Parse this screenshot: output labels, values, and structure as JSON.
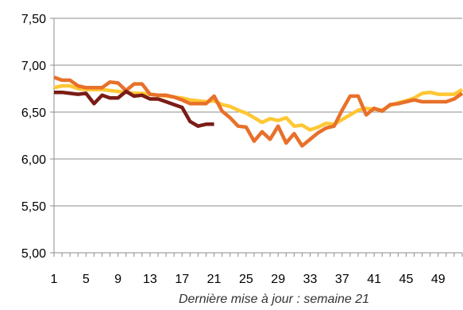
{
  "chart_data": {
    "type": "line",
    "title": "",
    "xlabel": "",
    "ylabel": "",
    "note": "Dernière mise à jour : semaine 21",
    "x_tick_labels": [
      "1",
      "5",
      "9",
      "13",
      "17",
      "21",
      "25",
      "29",
      "33",
      "37",
      "41",
      "45",
      "49"
    ],
    "y_tick_labels": [
      "5,00",
      "5,50",
      "6,00",
      "6,50",
      "7,00",
      "7,50"
    ],
    "ylim": [
      5.0,
      7.5
    ],
    "xlim": [
      1,
      52
    ],
    "grid": "horizontal",
    "legend": "none",
    "series": [
      {
        "color": "#FFC734",
        "x": [
          1,
          2,
          3,
          4,
          5,
          6,
          7,
          8,
          9,
          10,
          11,
          12,
          13,
          14,
          15,
          16,
          17,
          18,
          19,
          20,
          21,
          22,
          23,
          24,
          25,
          26,
          27,
          28,
          29,
          30,
          31,
          32,
          33,
          34,
          35,
          36,
          37,
          38,
          39,
          40,
          41,
          42,
          43,
          44,
          45,
          46,
          47,
          48,
          49,
          50,
          51,
          52
        ],
        "values": [
          6.76,
          6.78,
          6.78,
          6.75,
          6.74,
          6.74,
          6.74,
          6.73,
          6.72,
          6.71,
          6.7,
          6.7,
          6.69,
          6.68,
          6.67,
          6.66,
          6.65,
          6.63,
          6.62,
          6.61,
          6.62,
          6.58,
          6.56,
          6.52,
          6.49,
          6.44,
          6.39,
          6.43,
          6.41,
          6.44,
          6.35,
          6.36,
          6.31,
          6.34,
          6.38,
          6.37,
          6.42,
          6.47,
          6.52,
          6.54,
          6.53,
          6.52,
          6.57,
          6.6,
          6.62,
          6.65,
          6.7,
          6.71,
          6.69,
          6.69,
          6.69,
          6.74
        ]
      },
      {
        "color": "#E8702A",
        "x": [
          1,
          2,
          3,
          4,
          5,
          6,
          7,
          8,
          9,
          10,
          11,
          12,
          13,
          14,
          15,
          16,
          17,
          18,
          19,
          20,
          21,
          22,
          23,
          24,
          25,
          26,
          27,
          28,
          29,
          30,
          31,
          32,
          33,
          34,
          35,
          36,
          37,
          38,
          39,
          40,
          41,
          42,
          43,
          44,
          45,
          46,
          47,
          48,
          49,
          50,
          51,
          52
        ],
        "values": [
          6.87,
          6.84,
          6.84,
          6.78,
          6.76,
          6.76,
          6.76,
          6.82,
          6.81,
          6.73,
          6.8,
          6.8,
          6.69,
          6.68,
          6.68,
          6.66,
          6.63,
          6.59,
          6.59,
          6.59,
          6.67,
          6.51,
          6.44,
          6.35,
          6.34,
          6.19,
          6.29,
          6.21,
          6.35,
          6.17,
          6.27,
          6.14,
          6.21,
          6.28,
          6.33,
          6.35,
          6.52,
          6.67,
          6.67,
          6.47,
          6.54,
          6.51,
          6.58,
          6.59,
          6.61,
          6.63,
          6.61,
          6.61,
          6.61,
          6.61,
          6.64,
          6.7
        ]
      },
      {
        "color": "#7B1C16",
        "x": [
          1,
          2,
          3,
          4,
          5,
          6,
          7,
          8,
          9,
          10,
          11,
          12,
          13,
          14,
          15,
          16,
          17,
          18,
          19,
          20,
          21
        ],
        "values": [
          6.71,
          6.71,
          6.7,
          6.69,
          6.7,
          6.59,
          6.68,
          6.65,
          6.65,
          6.72,
          6.67,
          6.68,
          6.64,
          6.64,
          6.61,
          6.58,
          6.55,
          6.4,
          6.35,
          6.37,
          6.37
        ]
      }
    ]
  }
}
